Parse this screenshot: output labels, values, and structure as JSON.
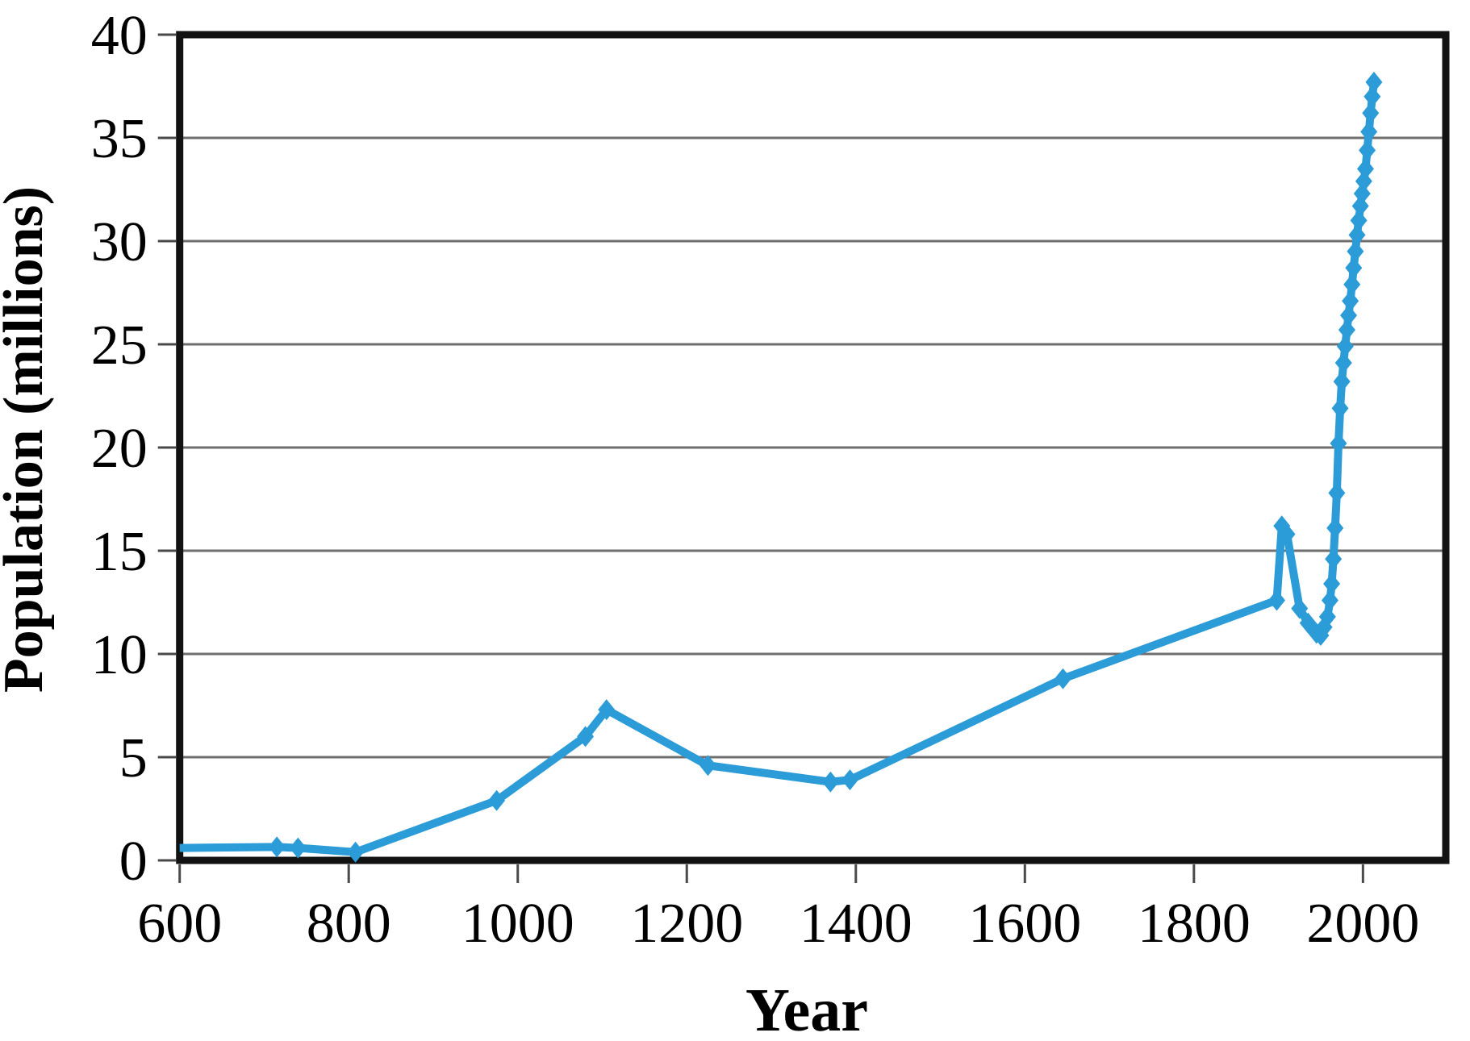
{
  "figure": {
    "background": "#ffffff"
  },
  "chart_data": {
    "type": "line",
    "title": "",
    "xlabel": "Year",
    "ylabel": "Population (millions)",
    "xlim": [
      600,
      2098
    ],
    "ylim": [
      0,
      40
    ],
    "x_ticks": [
      600,
      800,
      1000,
      1200,
      1400,
      1600,
      1800,
      2000
    ],
    "y_ticks": [
      0,
      5,
      10,
      15,
      20,
      25,
      30,
      35,
      40
    ],
    "grid": "horizontal-only",
    "legend": "none",
    "colors": {
      "line": "#2B9CD8",
      "gridline": "#6F6F6F",
      "axis_border": "#121212",
      "tick": "#4A4A4A",
      "text": "#000000"
    },
    "marker": "diamond",
    "series": [
      {
        "name": "population",
        "points": [
          [
            600,
            0.6
          ],
          [
            715,
            0.65
          ],
          [
            740,
            0.6
          ],
          [
            808,
            0.4
          ],
          [
            975,
            2.9
          ],
          [
            1080,
            6.0
          ],
          [
            1105,
            7.3
          ],
          [
            1225,
            4.6
          ],
          [
            1370,
            3.8
          ],
          [
            1393,
            3.9
          ],
          [
            1645,
            8.8
          ],
          [
            1898,
            12.6
          ],
          [
            1904,
            16.2
          ],
          [
            1910,
            15.8
          ],
          [
            1925,
            12.2
          ],
          [
            1935,
            11.5
          ],
          [
            1945,
            11.0
          ],
          [
            1950,
            10.9
          ],
          [
            1954,
            11.3
          ],
          [
            1958,
            11.8
          ],
          [
            1961,
            12.6
          ],
          [
            1963,
            13.4
          ],
          [
            1965,
            14.6
          ],
          [
            1967,
            16.1
          ],
          [
            1969,
            17.8
          ],
          [
            1971,
            20.2
          ],
          [
            1973,
            21.9
          ],
          [
            1975,
            23.2
          ],
          [
            1977,
            24.1
          ],
          [
            1979,
            24.9
          ],
          [
            1981,
            25.7
          ],
          [
            1983,
            26.4
          ],
          [
            1985,
            27.1
          ],
          [
            1987,
            27.9
          ],
          [
            1989,
            28.7
          ],
          [
            1991,
            29.5
          ],
          [
            1993,
            30.3
          ],
          [
            1995,
            31.0
          ],
          [
            1997,
            31.7
          ],
          [
            1999,
            32.3
          ],
          [
            2001,
            32.9
          ],
          [
            2003,
            33.5
          ],
          [
            2005,
            34.4
          ],
          [
            2007,
            35.3
          ],
          [
            2009,
            36.2
          ],
          [
            2011,
            37.0
          ],
          [
            2013,
            37.7
          ]
        ]
      }
    ]
  }
}
